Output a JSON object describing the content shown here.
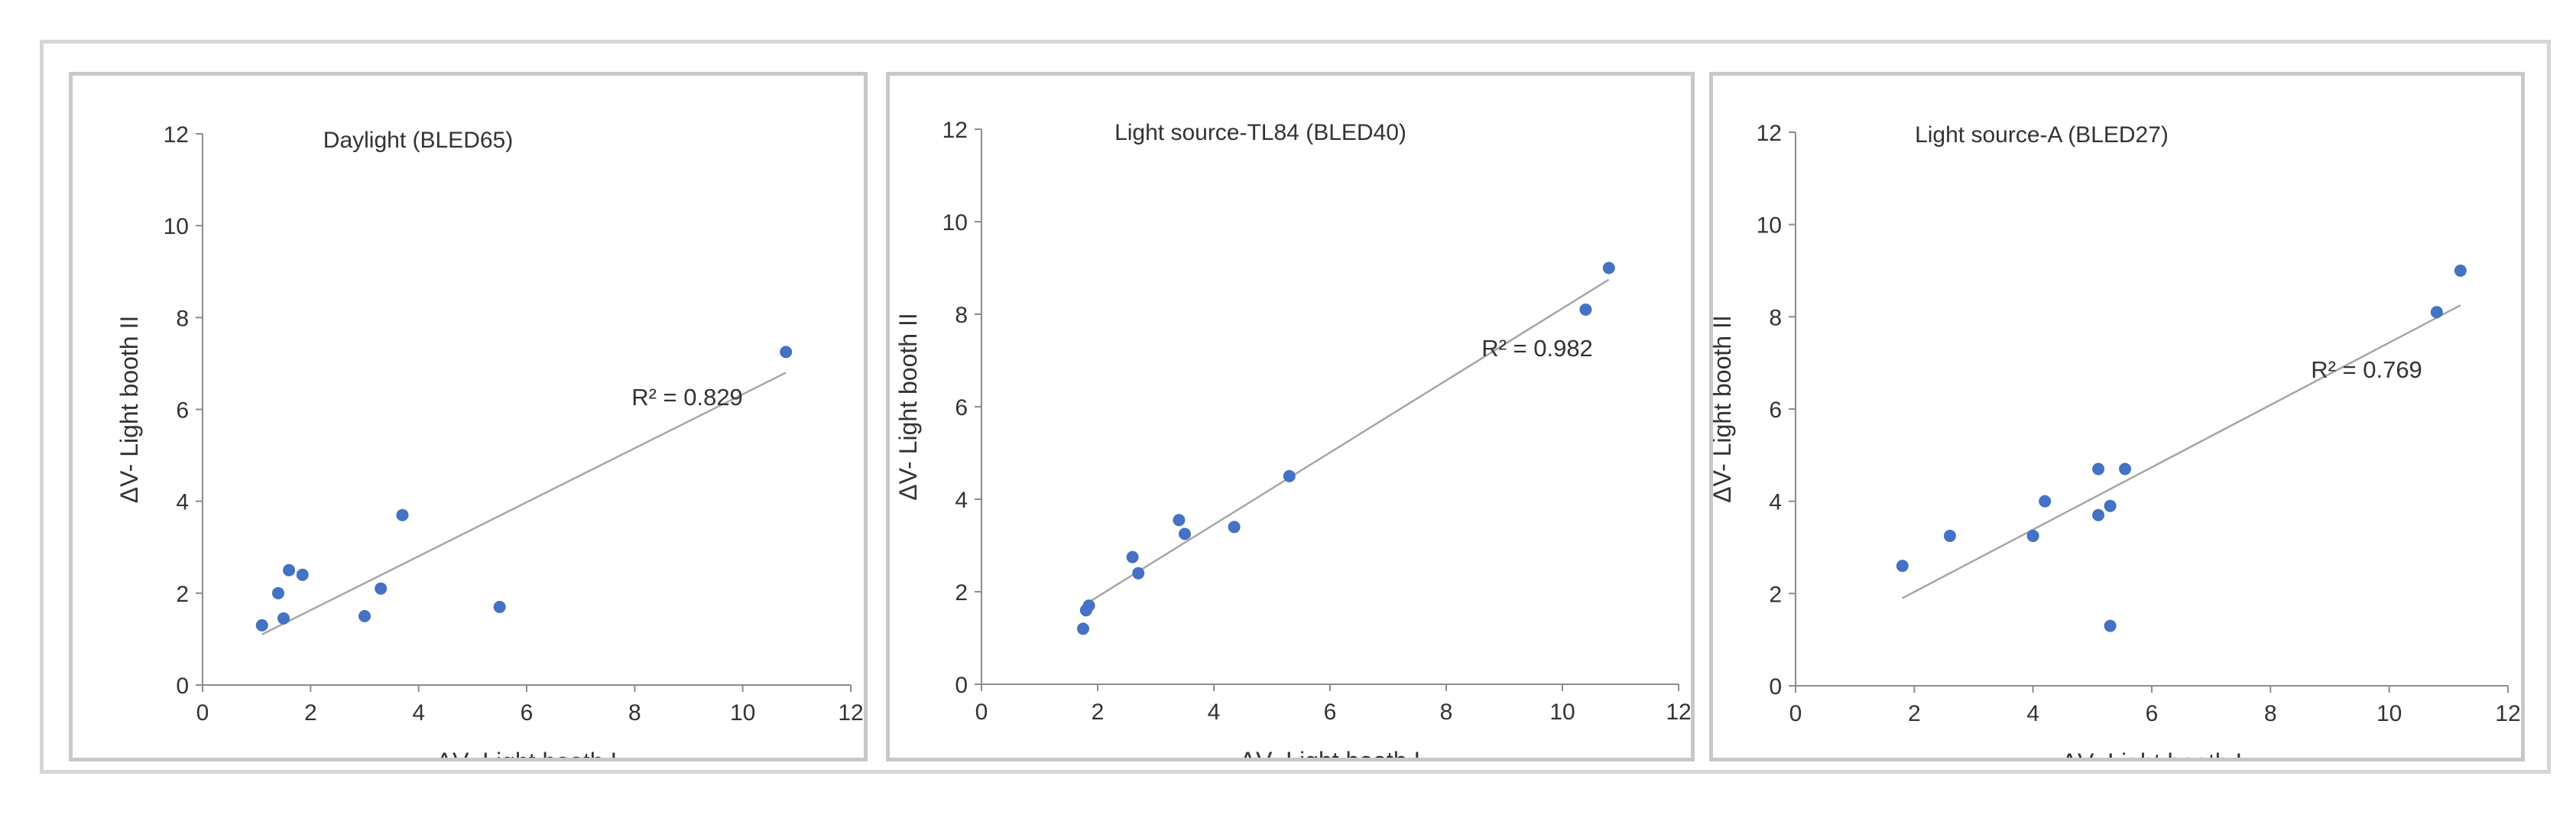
{
  "chart_data": [
    {
      "type": "scatter",
      "title": "Daylight (BLED65)",
      "xlabel": "ΔV- Light booth I",
      "ylabel": "ΔV- Light booth II",
      "xlim": [
        0,
        12
      ],
      "ylim": [
        0,
        12
      ],
      "xticks": [
        "0",
        "2",
        "4",
        "6",
        "8",
        "10",
        "12"
      ],
      "yticks": [
        "0",
        "2",
        "4",
        "6",
        "8",
        "10",
        "12"
      ],
      "grid": false,
      "marker_color": "#4472c4",
      "trendline_color": "#a6a6a6",
      "r2_label": "R² = 0.829",
      "trendline": {
        "x": [
          1.1,
          10.8
        ],
        "y": [
          1.1,
          6.8
        ]
      },
      "points": [
        {
          "x": 1.1,
          "y": 1.3
        },
        {
          "x": 1.4,
          "y": 2.0
        },
        {
          "x": 1.5,
          "y": 1.45
        },
        {
          "x": 1.6,
          "y": 2.5
        },
        {
          "x": 1.85,
          "y": 2.4
        },
        {
          "x": 3.0,
          "y": 1.5
        },
        {
          "x": 3.3,
          "y": 2.1
        },
        {
          "x": 3.7,
          "y": 3.7
        },
        {
          "x": 5.5,
          "y": 1.7
        },
        {
          "x": 10.8,
          "y": 7.25
        }
      ]
    },
    {
      "type": "scatter",
      "title": "Light source-TL84 (BLED40)",
      "xlabel": "ΔV- Light booth I",
      "ylabel": "ΔV- Light booth II",
      "xlim": [
        0,
        12
      ],
      "ylim": [
        0,
        12
      ],
      "xticks": [
        "0",
        "2",
        "4",
        "6",
        "8",
        "10",
        "12"
      ],
      "yticks": [
        "0",
        "2",
        "4",
        "6",
        "8",
        "10",
        "12"
      ],
      "grid": false,
      "marker_color": "#4472c4",
      "trendline_color": "#a6a6a6",
      "r2_label": "R² = 0.982",
      "trendline": {
        "x": [
          1.75,
          10.8
        ],
        "y": [
          1.7,
          8.75
        ]
      },
      "points": [
        {
          "x": 1.75,
          "y": 1.2
        },
        {
          "x": 1.8,
          "y": 1.6
        },
        {
          "x": 1.85,
          "y": 1.7
        },
        {
          "x": 2.6,
          "y": 2.75
        },
        {
          "x": 2.7,
          "y": 2.4
        },
        {
          "x": 3.4,
          "y": 3.55
        },
        {
          "x": 3.5,
          "y": 3.25
        },
        {
          "x": 4.35,
          "y": 3.4
        },
        {
          "x": 5.3,
          "y": 4.5
        },
        {
          "x": 10.4,
          "y": 8.1
        },
        {
          "x": 10.8,
          "y": 9.0
        }
      ]
    },
    {
      "type": "scatter",
      "title": "Light source-A (BLED27)",
      "xlabel": "ΔV- Light booth I",
      "ylabel": "ΔV- Light booth II",
      "xlim": [
        0,
        12
      ],
      "ylim": [
        0,
        12
      ],
      "xticks": [
        "0",
        "2",
        "4",
        "6",
        "8",
        "10",
        "12"
      ],
      "yticks": [
        "0",
        "2",
        "4",
        "6",
        "8",
        "10",
        "12"
      ],
      "grid": false,
      "marker_color": "#4472c4",
      "trendline_color": "#a6a6a6",
      "r2_label": "R² = 0.769",
      "trendline": {
        "x": [
          1.8,
          11.2
        ],
        "y": [
          1.9,
          8.25
        ]
      },
      "points": [
        {
          "x": 1.8,
          "y": 2.6
        },
        {
          "x": 2.6,
          "y": 3.25
        },
        {
          "x": 4.0,
          "y": 3.25
        },
        {
          "x": 4.2,
          "y": 4.0
        },
        {
          "x": 5.1,
          "y": 3.7
        },
        {
          "x": 5.1,
          "y": 4.7
        },
        {
          "x": 5.3,
          "y": 1.3
        },
        {
          "x": 5.3,
          "y": 3.9
        },
        {
          "x": 5.55,
          "y": 4.7
        },
        {
          "x": 10.8,
          "y": 8.1
        },
        {
          "x": 11.2,
          "y": 9.0
        }
      ]
    }
  ]
}
